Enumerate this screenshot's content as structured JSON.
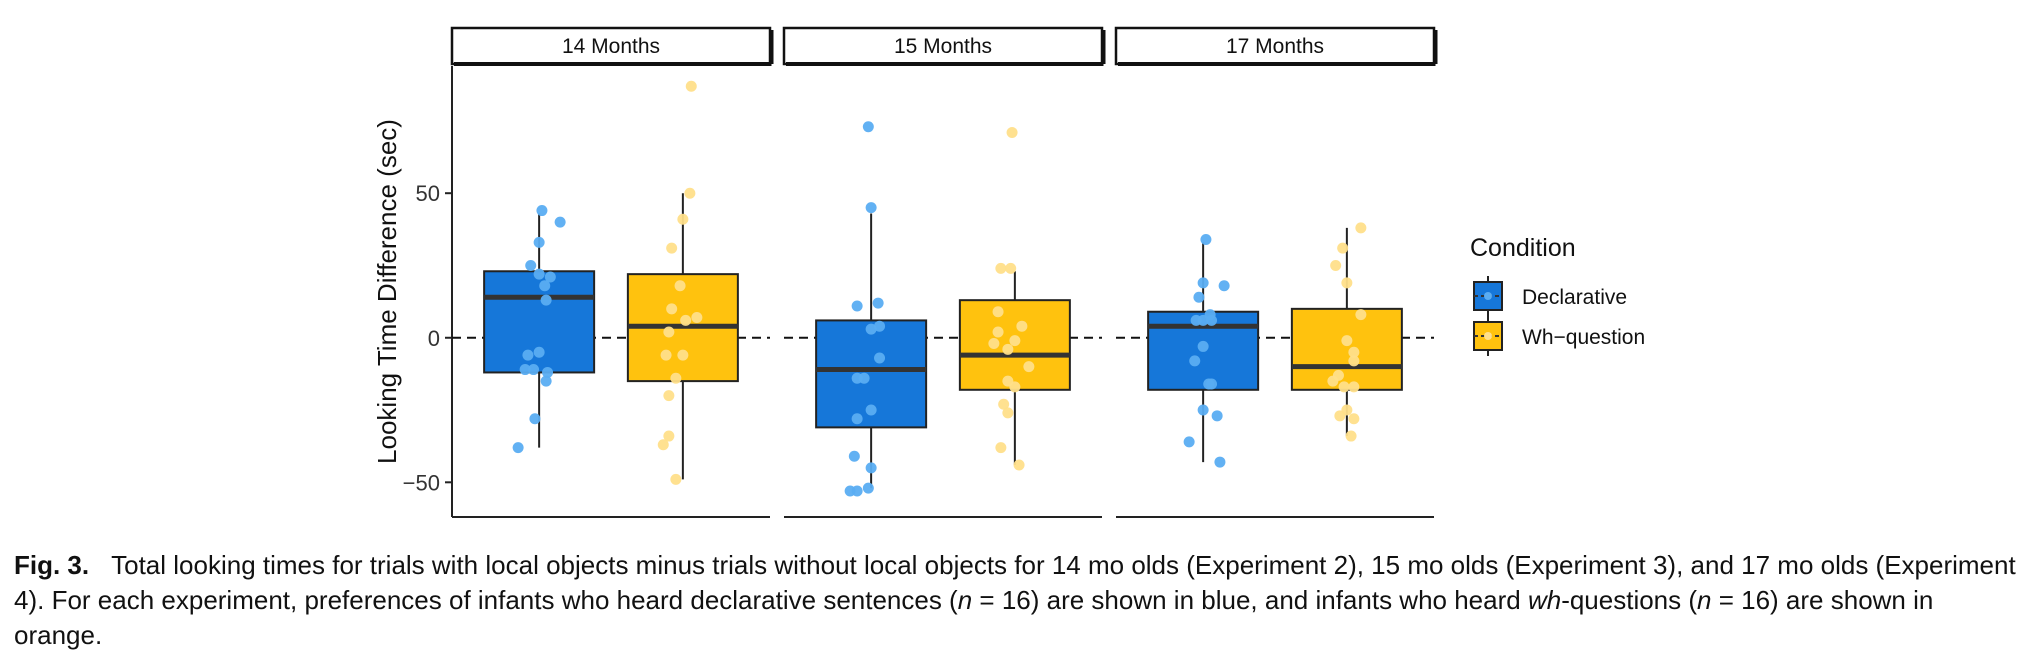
{
  "chart_data": {
    "type": "box",
    "ylabel": "Looking Time Difference (sec)",
    "ylim": [
      -62,
      94
    ],
    "yticks": [
      -50,
      0,
      50
    ],
    "reference_line": 0,
    "grid": false,
    "legend": {
      "title": "Condition",
      "position": "right",
      "entries": [
        {
          "name": "Declarative",
          "color": "#1677d9"
        },
        {
          "name": "Wh−question",
          "color": "#ffc20e"
        }
      ]
    },
    "facets": [
      {
        "label": "14 Months",
        "groups": [
          {
            "series": "Declarative",
            "q1": -12,
            "median": 14,
            "q3": 23,
            "whisker_low": -38,
            "whisker_high": 43,
            "points": [
              [
                0.02,
                44
              ],
              [
                0.15,
                40
              ],
              [
                0.0,
                33
              ],
              [
                -0.06,
                25
              ],
              [
                0.0,
                22
              ],
              [
                0.08,
                21
              ],
              [
                0.04,
                18
              ],
              [
                0.05,
                13
              ],
              [
                -0.08,
                -6
              ],
              [
                0.0,
                -5
              ],
              [
                -0.1,
                -11
              ],
              [
                -0.04,
                -11
              ],
              [
                0.05,
                -15
              ],
              [
                -0.03,
                -28
              ],
              [
                -0.15,
                -38
              ],
              [
                0.06,
                -12
              ]
            ]
          },
          {
            "series": "Wh−question",
            "q1": -15,
            "median": 4,
            "q3": 22,
            "whisker_low": -49,
            "whisker_high": 50,
            "points": [
              [
                0.06,
                87
              ],
              [
                0.05,
                50
              ],
              [
                0.0,
                41
              ],
              [
                -0.08,
                31
              ],
              [
                -0.02,
                18
              ],
              [
                -0.08,
                10
              ],
              [
                0.1,
                7
              ],
              [
                0.02,
                6
              ],
              [
                -0.1,
                2
              ],
              [
                0.0,
                -6
              ],
              [
                -0.12,
                -6
              ],
              [
                -0.05,
                -14
              ],
              [
                -0.1,
                -20
              ],
              [
                -0.1,
                -34
              ],
              [
                -0.14,
                -37
              ],
              [
                -0.05,
                -49
              ]
            ]
          }
        ]
      },
      {
        "label": "15 Months",
        "groups": [
          {
            "series": "Declarative",
            "q1": -31,
            "median": -11,
            "q3": 6,
            "whisker_low": -52,
            "whisker_high": 43,
            "points": [
              [
                -0.02,
                73
              ],
              [
                0.0,
                45
              ],
              [
                -0.1,
                11
              ],
              [
                0.05,
                12
              ],
              [
                0.06,
                4
              ],
              [
                0.0,
                3
              ],
              [
                0.06,
                -7
              ],
              [
                -0.1,
                -14
              ],
              [
                -0.05,
                -14
              ],
              [
                0.0,
                -25
              ],
              [
                -0.1,
                -28
              ],
              [
                -0.12,
                -41
              ],
              [
                0.0,
                -45
              ],
              [
                -0.15,
                -53
              ],
              [
                -0.1,
                -53
              ],
              [
                -0.02,
                -52
              ]
            ]
          },
          {
            "series": "Wh−question",
            "q1": -18,
            "median": -6,
            "q3": 13,
            "whisker_low": -44,
            "whisker_high": 23,
            "points": [
              [
                -0.02,
                71
              ],
              [
                -0.1,
                24
              ],
              [
                -0.03,
                24
              ],
              [
                -0.12,
                9
              ],
              [
                0.05,
                4
              ],
              [
                -0.12,
                2
              ],
              [
                0.0,
                -1
              ],
              [
                -0.05,
                -4
              ],
              [
                0.1,
                -10
              ],
              [
                -0.05,
                -15
              ],
              [
                0.0,
                -17
              ],
              [
                -0.08,
                -23
              ],
              [
                -0.05,
                -26
              ],
              [
                -0.1,
                -38
              ],
              [
                0.03,
                -44
              ],
              [
                -0.15,
                -2
              ]
            ]
          }
        ]
      },
      {
        "label": "17 Months",
        "groups": [
          {
            "series": "Declarative",
            "q1": -18,
            "median": 4,
            "q3": 9,
            "whisker_low": -43,
            "whisker_high": 33,
            "points": [
              [
                0.02,
                34
              ],
              [
                0.0,
                19
              ],
              [
                0.15,
                18
              ],
              [
                -0.03,
                14
              ],
              [
                0.05,
                8
              ],
              [
                -0.05,
                6
              ],
              [
                0.0,
                6
              ],
              [
                0.06,
                6
              ],
              [
                0.0,
                -3
              ],
              [
                -0.06,
                -8
              ],
              [
                0.06,
                -16
              ],
              [
                0.04,
                -16
              ],
              [
                0.0,
                -25
              ],
              [
                0.1,
                -27
              ],
              [
                -0.1,
                -36
              ],
              [
                0.12,
                -43
              ]
            ]
          },
          {
            "series": "Wh−question",
            "q1": -18,
            "median": -10,
            "q3": 10,
            "whisker_low": -34,
            "whisker_high": 38,
            "points": [
              [
                0.1,
                38
              ],
              [
                -0.03,
                31
              ],
              [
                -0.08,
                25
              ],
              [
                0.0,
                19
              ],
              [
                0.1,
                8
              ],
              [
                0.0,
                -1
              ],
              [
                0.05,
                -5
              ],
              [
                0.05,
                -8
              ],
              [
                -0.06,
                -13
              ],
              [
                -0.1,
                -15
              ],
              [
                -0.02,
                -17
              ],
              [
                0.05,
                -17
              ],
              [
                0.0,
                -25
              ],
              [
                -0.05,
                -27
              ],
              [
                0.05,
                -28
              ],
              [
                0.03,
                -34
              ]
            ]
          }
        ]
      }
    ]
  },
  "caption": {
    "label": "Fig. 3.",
    "part1": "Total looking times for trials with local objects minus trials without local objects for 14 mo olds (Experiment 2), 15 mo olds (Experiment 3), and 17 mo olds (Experiment 4). For each experiment, preferences of infants who heard declarative sentences (",
    "n1_var": "n",
    "n1_rest": " = 16) are shown in blue, and infants who heard ",
    "wh": "wh",
    "part2": "-questions (",
    "n2_var": "n",
    "n2_rest": " = 16) are shown in orange."
  }
}
